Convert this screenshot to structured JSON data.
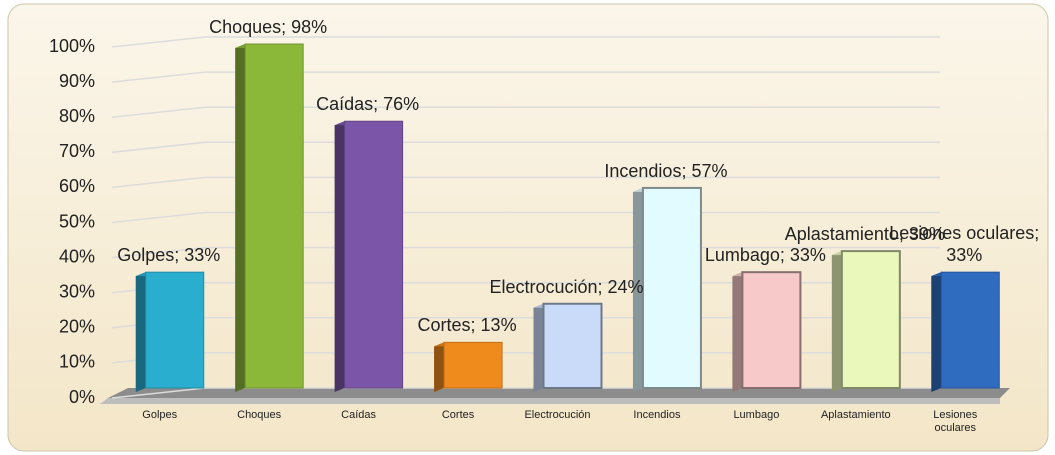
{
  "chart_data": {
    "type": "bar",
    "categories": [
      "Golpes",
      "Choques",
      "Caídas",
      "Cortes",
      "Electrocución",
      "Incendios",
      "Lumbago",
      "Aplastamiento",
      "Lesiones oculares"
    ],
    "values": [
      33,
      98,
      76,
      13,
      24,
      57,
      33,
      39,
      33
    ],
    "value_labels": [
      "Golpes; 33%",
      "Choques; 98%",
      "Caídas; 76%",
      "Cortes; 13%",
      "Electrocución; 24%",
      "Incendios; 57%",
      "Lumbago; 33%",
      "Aplastamiento; 39%",
      "Lesiones oculares; 33%"
    ],
    "colors": [
      "#2aaed0",
      "#8cb83a",
      "#7b55a8",
      "#ef8a1d",
      "#c9dbf8",
      "#e2fbff",
      "#f7c9c9",
      "#ebf8bb",
      "#2f6cc0"
    ],
    "ylim": [
      0,
      100
    ],
    "yticks": [
      {
        "value": 0,
        "label": "0%"
      },
      {
        "value": 10,
        "label": "10%"
      },
      {
        "value": 20,
        "label": "20%"
      },
      {
        "value": 30,
        "label": "30%"
      },
      {
        "value": 40,
        "label": "40%"
      },
      {
        "value": 50,
        "label": "50%"
      },
      {
        "value": 60,
        "label": "60%"
      },
      {
        "value": 70,
        "label": "70%"
      },
      {
        "value": 80,
        "label": "80%"
      },
      {
        "value": 90,
        "label": "90%"
      },
      {
        "value": 100,
        "label": "100%"
      }
    ],
    "grid": true
  }
}
